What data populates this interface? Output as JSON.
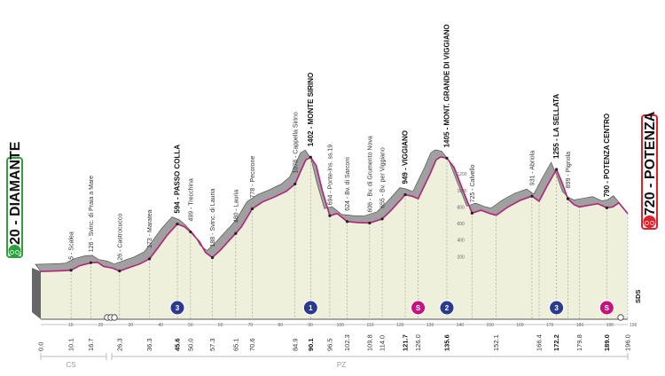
{
  "start": {
    "label": "20 - DIAMANTE",
    "color": "#2e9e3e"
  },
  "finish": {
    "label": "720 - POTENZA",
    "color": "#e0202a"
  },
  "regions": [
    "CS",
    "PZ"
  ],
  "side_label": "SDS",
  "colors": {
    "profile_fill": "#eef0dc",
    "climb_fill": "#a0a0a0",
    "profile_line": "#b5227a",
    "mountain_blue": "#2a3b8f",
    "mountain_pink": "#c4127e"
  },
  "km_axis": {
    "ticks": [
      "10",
      "20",
      "30",
      "40",
      "50",
      "60",
      "70",
      "80",
      "90",
      "100",
      "110",
      "120",
      "130",
      "140",
      "150",
      "160",
      "170",
      "180",
      "190"
    ],
    "end_tick": "196"
  },
  "waypoints": [
    {
      "km": 0.0,
      "km_label": "0.0",
      "name": "",
      "alt": "",
      "bold": false
    },
    {
      "km": 10.1,
      "km_label": "10.1",
      "name": "5 - Scalea",
      "alt": "5",
      "bold": false
    },
    {
      "km": 16.7,
      "km_label": "16.7",
      "name": "126 - Svinc. di Praia a Mare",
      "alt": "126",
      "bold": false
    },
    {
      "km": 26.3,
      "km_label": "26.3",
      "name": "26 - Castrocucco",
      "alt": "26",
      "bold": false
    },
    {
      "km": 36.3,
      "km_label": "36.3",
      "name": "173 - Maratea",
      "alt": "173",
      "bold": false
    },
    {
      "km": 45.6,
      "km_label": "45.6",
      "name": "594 - PASSO COLLA",
      "alt": "594",
      "bold": true
    },
    {
      "km": 50.0,
      "km_label": "50.0",
      "name": "499 - Trecchina",
      "alt": "499",
      "bold": false
    },
    {
      "km": 57.3,
      "km_label": "57.3",
      "name": "188 - Svinc. di Lauria",
      "alt": "188",
      "bold": false
    },
    {
      "km": 65.1,
      "km_label": "65.1",
      "name": "480 - Lauria",
      "alt": "480",
      "bold": false
    },
    {
      "km": 70.6,
      "km_label": "70.6",
      "name": "778 - Pecorone",
      "alt": "778",
      "bold": false
    },
    {
      "km": 84.9,
      "km_label": "84.9",
      "name": "1078 - Cappella Sirino",
      "alt": "1078",
      "bold": false
    },
    {
      "km": 90.1,
      "km_label": "90.1",
      "name": "1402 - MONTE SIRINO",
      "alt": "1402",
      "bold": true
    },
    {
      "km": 96.5,
      "km_label": "96.5",
      "name": "694 - Ponte-Ins. ss.19",
      "alt": "694",
      "bold": false
    },
    {
      "km": 102.3,
      "km_label": "102.3",
      "name": "624 - Bv. di Sarconi",
      "alt": "624",
      "bold": false
    },
    {
      "km": 109.8,
      "km_label": "109.8",
      "name": "606 - Bv. di Grumento Nova",
      "alt": "606",
      "bold": false
    },
    {
      "km": 114.0,
      "km_label": "114.0",
      "name": "655 - Bv. per Viggiano",
      "alt": "655",
      "bold": false
    },
    {
      "km": 121.7,
      "km_label": "121.7",
      "name": "949 - VIGGIANO",
      "alt": "949",
      "bold": true
    },
    {
      "km": 126.0,
      "km_label": "126.0",
      "name": "",
      "alt": "",
      "bold": false
    },
    {
      "km": 135.6,
      "km_label": "135.6",
      "name": "1405 - MONT. GRANDE DI VIGGIANO",
      "alt": "1405",
      "bold": true
    },
    {
      "km": 144.0,
      "km_label": "",
      "name": "725 - Calvello",
      "alt": "725",
      "bold": false
    },
    {
      "km": 152.1,
      "km_label": "152.1",
      "name": "",
      "alt": "",
      "bold": false
    },
    {
      "km": 164.0,
      "km_label": "",
      "name": "931 - Abriola",
      "alt": "931",
      "bold": false
    },
    {
      "km": 166.4,
      "km_label": "166.4",
      "name": "",
      "alt": "",
      "bold": false
    },
    {
      "km": 172.2,
      "km_label": "172.2",
      "name": "1255 - LA SELLATA",
      "alt": "1255",
      "bold": true
    },
    {
      "km": 176.0,
      "km_label": "",
      "name": "899 - Pignola",
      "alt": "899",
      "bold": false
    },
    {
      "km": 179.8,
      "km_label": "179.8",
      "name": "",
      "alt": "",
      "bold": false
    },
    {
      "km": 189.0,
      "km_label": "189.0",
      "name": "790 - POTENZA CENTRO",
      "alt": "790",
      "bold": true
    },
    {
      "km": 196.0,
      "km_label": "196.0",
      "name": "",
      "alt": "",
      "bold": false
    }
  ],
  "altitude_scale": [
    "1200",
    "1000",
    "800",
    "600",
    "400",
    "200"
  ],
  "climbs": [
    {
      "km": 45.6,
      "category": "3",
      "color": "blue"
    },
    {
      "km": 90.1,
      "category": "1",
      "color": "blue"
    },
    {
      "km": 126.0,
      "category": "S",
      "color": "pink"
    },
    {
      "km": 135.6,
      "category": "2",
      "color": "blue"
    },
    {
      "km": 172.2,
      "category": "3",
      "color": "blue"
    },
    {
      "km": 189.0,
      "category": "S",
      "color": "pink"
    }
  ]
}
